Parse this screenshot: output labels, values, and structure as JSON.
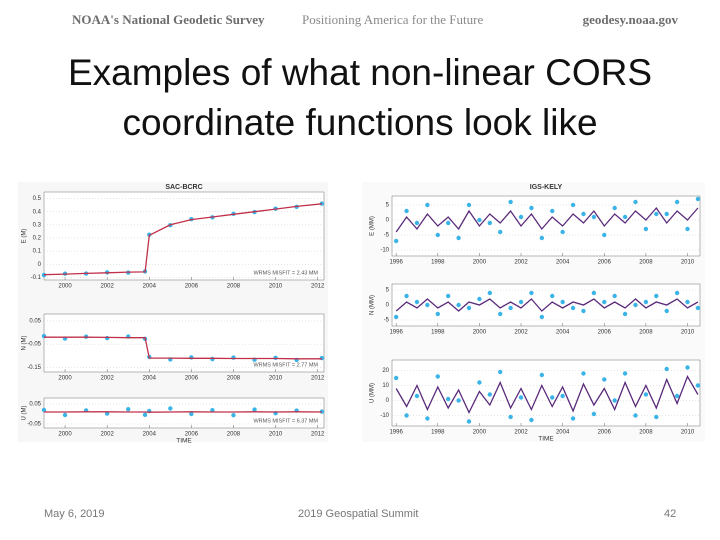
{
  "header": {
    "org": "NOAA's National Geodetic Survey",
    "tagline": "Positioning America for the Future",
    "site": "geodesy.noaa.gov"
  },
  "title": {
    "line1": "Examples of what non-linear CORS",
    "line2": "coordinate functions look like"
  },
  "footer": {
    "date": "May 6, 2019",
    "event": "2019 Geospatial Summit",
    "page": "42"
  },
  "figures": [
    {
      "title": "SAC-BCRC",
      "xlabel": "TIME",
      "xlim": [
        1999,
        2012.3
      ],
      "xticks": [
        2000,
        2002,
        2004,
        2006,
        2008,
        2010,
        2012
      ],
      "x": [
        1999,
        2000,
        2001,
        2002,
        2003,
        2003.8,
        2004,
        2005,
        2006,
        2007,
        2008,
        2009,
        2010,
        2011,
        2012.2
      ],
      "point_color": "#3ab4e6",
      "fit_color": "#c0304a",
      "panels": [
        {
          "ylabel": "E (M)",
          "note": "WRMS MISFIT = 2.43 MM",
          "ylim": [
            -0.12,
            0.55
          ],
          "yticks": [
            -0.1,
            0,
            0.1,
            0.2,
            0.3,
            0.4,
            0.5
          ],
          "fit": [
            -0.08,
            -0.075,
            -0.07,
            -0.065,
            -0.06,
            -0.058,
            0.22,
            0.3,
            0.34,
            0.36,
            0.38,
            0.4,
            0.42,
            0.44,
            0.46
          ],
          "observed": [
            -0.082,
            -0.072,
            -0.071,
            -0.062,
            -0.063,
            -0.055,
            0.225,
            0.297,
            0.343,
            0.357,
            0.384,
            0.397,
            0.423,
            0.437,
            0.462
          ]
        },
        {
          "ylabel": "N (M)",
          "note": "WRMS MISFIT = 2.77 MM",
          "ylim": [
            -0.17,
            0.08
          ],
          "yticks": [
            0.05,
            -0.05,
            -0.15
          ],
          "fit": [
            -0.02,
            -0.02,
            -0.02,
            -0.021,
            -0.022,
            -0.022,
            -0.11,
            -0.11,
            -0.111,
            -0.111,
            -0.112,
            -0.112,
            -0.112,
            -0.113,
            -0.113
          ],
          "observed": [
            -0.015,
            -0.026,
            -0.018,
            -0.024,
            -0.017,
            -0.027,
            -0.105,
            -0.116,
            -0.107,
            -0.114,
            -0.108,
            -0.117,
            -0.109,
            -0.118,
            -0.11
          ]
        },
        {
          "ylabel": "U (M)",
          "note": "WRMS MISFIT = 6.37 MM",
          "ylim": [
            -0.07,
            0.08
          ],
          "yticks": [
            0.05,
            -0.05
          ],
          "fit": [
            0.01,
            0.01,
            0.011,
            0.011,
            0.01,
            0.01,
            0.009,
            0.01,
            0.011,
            0.01,
            0.01,
            0.011,
            0.01,
            0.011,
            0.01
          ],
          "observed": [
            0.02,
            -0.005,
            0.018,
            0.002,
            0.024,
            -0.004,
            0.015,
            0.028,
            0.0,
            0.019,
            -0.006,
            0.022,
            0.004,
            0.017,
            0.012
          ]
        }
      ]
    },
    {
      "title": "IGS-KELY",
      "xlabel": "TIME",
      "xlim": [
        1995.8,
        2010.6
      ],
      "xticks": [
        1996,
        1998,
        2000,
        2002,
        2004,
        2006,
        2008,
        2010
      ],
      "x": [
        1996,
        1996.5,
        1997,
        1997.5,
        1998,
        1998.5,
        1999,
        1999.5,
        2000,
        2000.5,
        2001,
        2001.5,
        2002,
        2002.5,
        2003,
        2003.5,
        2004,
        2004.5,
        2005,
        2005.5,
        2006,
        2006.5,
        2007,
        2007.5,
        2008,
        2008.5,
        2009,
        2009.5,
        2010,
        2010.5
      ],
      "point_color": "#3ab4e6",
      "fit_color": "#5a2a7a",
      "panels": [
        {
          "ylabel": "E (MM)",
          "ylim": [
            -12,
            8
          ],
          "yticks": [
            5,
            0,
            -5,
            -10
          ],
          "fit": [
            -4,
            1,
            -3,
            2,
            -2,
            1,
            -3,
            3,
            -2,
            2,
            -1,
            3,
            -2,
            2,
            -3,
            1,
            -2,
            2,
            -1,
            3,
            -2,
            2,
            -1,
            3,
            0,
            4,
            -1,
            3,
            0,
            4
          ],
          "observed": [
            -7,
            3,
            -1,
            5,
            -5,
            -1,
            -6,
            5,
            0,
            -1,
            -4,
            6,
            1,
            4,
            -6,
            3,
            -4,
            5,
            2,
            1,
            -5,
            4,
            1,
            6,
            -3,
            2,
            2,
            6,
            -3,
            7
          ]
        },
        {
          "ylabel": "N (MM)",
          "ylim": [
            -7,
            7
          ],
          "yticks": [
            5,
            0,
            -5
          ],
          "fit": [
            -2,
            1,
            -1,
            2,
            -1,
            1,
            -2,
            1,
            0,
            2,
            -1,
            1,
            -1,
            2,
            -2,
            1,
            -1,
            1,
            0,
            2,
            -1,
            1,
            -1,
            2,
            -1,
            1,
            0,
            2,
            -1,
            1
          ],
          "observed": [
            -4,
            3,
            1,
            0,
            -3,
            3,
            0,
            -1,
            2,
            4,
            -3,
            -1,
            1,
            4,
            -4,
            3,
            1,
            -1,
            -2,
            4,
            1,
            3,
            -3,
            0,
            1,
            3,
            -2,
            4,
            1,
            -1
          ]
        },
        {
          "ylabel": "U (MM)",
          "ylim": [
            -17,
            27
          ],
          "yticks": [
            20,
            10,
            0,
            -10
          ],
          "fit": [
            8,
            -4,
            10,
            -6,
            9,
            -5,
            7,
            -8,
            6,
            -3,
            12,
            -5,
            8,
            -6,
            10,
            -4,
            9,
            -7,
            11,
            -3,
            8,
            -6,
            12,
            -4,
            10,
            -5,
            14,
            -2,
            16,
            4
          ],
          "observed": [
            15,
            -10,
            3,
            -12,
            16,
            1,
            0,
            -14,
            12,
            4,
            19,
            -11,
            2,
            -13,
            17,
            2,
            3,
            -12,
            18,
            -9,
            14,
            0,
            18,
            -10,
            4,
            -11,
            21,
            3,
            22,
            10
          ]
        }
      ]
    }
  ]
}
